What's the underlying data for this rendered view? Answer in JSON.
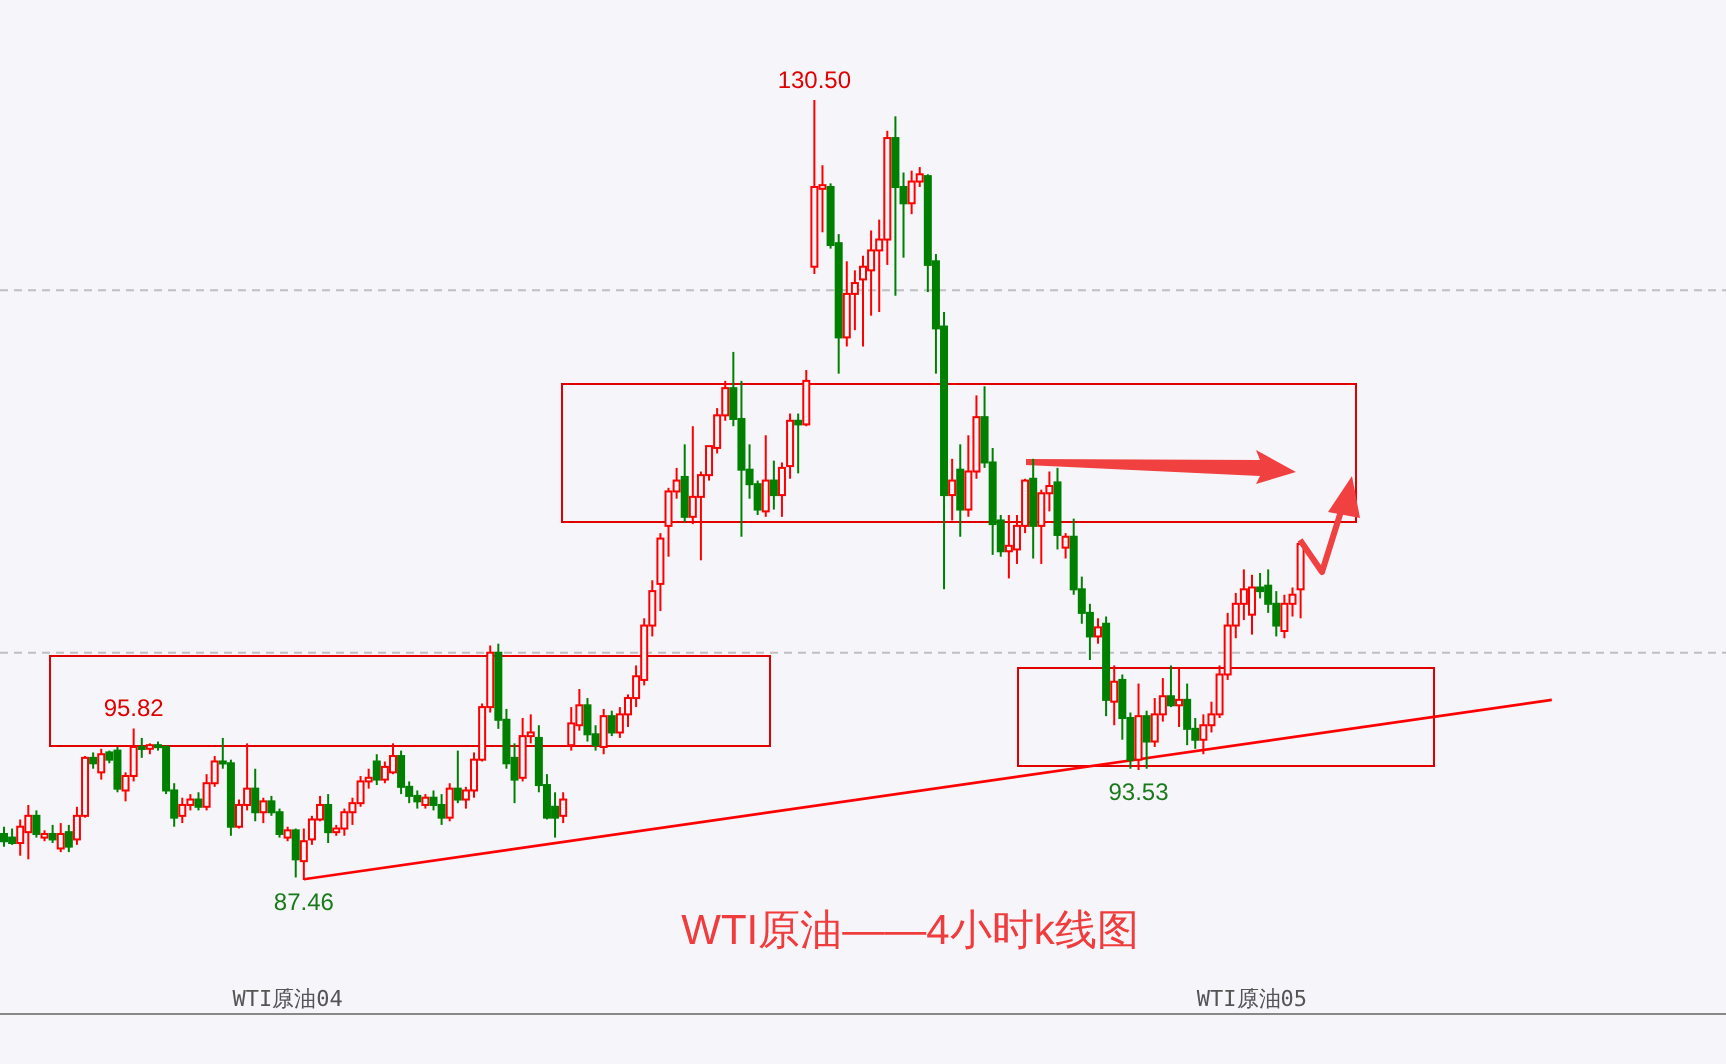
{
  "chart_data": {
    "type": "candlestick",
    "title": "WTI原油——4小时k线图",
    "categories": [
      null,
      null,
      null,
      null,
      null,
      null,
      null,
      null,
      null,
      null,
      null,
      null,
      null,
      null,
      null,
      null,
      null,
      null,
      null,
      null,
      null,
      null,
      null,
      null,
      null,
      null,
      null,
      null,
      null,
      null,
      null,
      null,
      null,
      null,
      null,
      "WTI原油04",
      null,
      null,
      null,
      null,
      null,
      null,
      null,
      null,
      null,
      null,
      null,
      null,
      null,
      null,
      null,
      null,
      null,
      null,
      null,
      null,
      null,
      null,
      null,
      null,
      null,
      null,
      null,
      null,
      null,
      null,
      null,
      null,
      null,
      null,
      null,
      null,
      null,
      null,
      null,
      null,
      null,
      null,
      null,
      null,
      null,
      null,
      null,
      null,
      null,
      null,
      null,
      null,
      null,
      null,
      null,
      null,
      null,
      null,
      null,
      null,
      null,
      null,
      null,
      null,
      null,
      null,
      null,
      null,
      null,
      null,
      null,
      null,
      null,
      null,
      null,
      null,
      null,
      null,
      null,
      null,
      null,
      null,
      null,
      null,
      null,
      null,
      null,
      null,
      null,
      null,
      null,
      null,
      null,
      null,
      null,
      null,
      null,
      null,
      null,
      null,
      null,
      null,
      null,
      null,
      null,
      null,
      null,
      null,
      null,
      null,
      null,
      null,
      null,
      null,
      null,
      null,
      null,
      null,
      "WTI原油05",
      null,
      null,
      null,
      null,
      null,
      null,
      null,
      null,
      null,
      null,
      null,
      null,
      null,
      null,
      null,
      null,
      null,
      null,
      null,
      null,
      null,
      null,
      null,
      null,
      null,
      null,
      null,
      null,
      null,
      null,
      null,
      null,
      null,
      null,
      null,
      null,
      null,
      null,
      null,
      null,
      null,
      null,
      null,
      null,
      null,
      null,
      null,
      null,
      null,
      null,
      null,
      null,
      null,
      null,
      null,
      null,
      null,
      null
    ],
    "ohlc": [
      [
        90.0,
        90.4,
        89.3,
        89.6
      ],
      [
        89.8,
        90.3,
        89.4,
        89.5
      ],
      [
        89.5,
        90.8,
        88.8,
        90.4
      ],
      [
        90.1,
        91.6,
        88.6,
        91.0
      ],
      [
        91.0,
        91.3,
        89.8,
        90.0
      ],
      [
        89.8,
        90.2,
        89.6,
        90.0
      ],
      [
        90.0,
        90.5,
        89.5,
        89.7
      ],
      [
        89.2,
        90.6,
        89.0,
        90.0
      ],
      [
        90.1,
        90.5,
        89.0,
        89.3
      ],
      [
        89.7,
        91.5,
        89.4,
        91.0
      ],
      [
        91.0,
        94.3,
        90.9,
        94.2
      ],
      [
        94.2,
        94.5,
        93.6,
        93.9
      ],
      [
        93.4,
        94.7,
        93.0,
        94.4
      ],
      [
        94.5,
        94.6,
        93.9,
        94.1
      ],
      [
        94.6,
        94.8,
        92.3,
        92.5
      ],
      [
        92.4,
        93.4,
        91.8,
        93.2
      ],
      [
        93.2,
        95.82,
        92.9,
        94.8
      ],
      [
        94.8,
        95.3,
        94.2,
        94.7
      ],
      [
        94.7,
        95.0,
        94.4,
        94.9
      ],
      [
        94.9,
        95.1,
        94.6,
        94.8
      ],
      [
        94.8,
        94.9,
        92.2,
        92.4
      ],
      [
        92.4,
        92.8,
        90.4,
        90.9
      ],
      [
        91.0,
        92.0,
        90.6,
        91.6
      ],
      [
        91.6,
        92.2,
        91.3,
        91.9
      ],
      [
        91.9,
        92.3,
        91.3,
        91.5
      ],
      [
        91.5,
        93.3,
        91.3,
        92.8
      ],
      [
        92.8,
        94.3,
        92.6,
        94.0
      ],
      [
        94.0,
        95.3,
        93.6,
        93.9
      ],
      [
        93.9,
        94.1,
        89.9,
        90.4
      ],
      [
        90.4,
        91.9,
        90.3,
        91.6
      ],
      [
        91.6,
        95.0,
        91.3,
        92.5
      ],
      [
        92.5,
        93.6,
        90.7,
        91.2
      ],
      [
        91.2,
        92.0,
        90.6,
        91.8
      ],
      [
        91.8,
        92.1,
        91.0,
        91.2
      ],
      [
        91.2,
        91.4,
        89.8,
        90.0
      ],
      [
        89.8,
        90.4,
        89.6,
        90.2
      ],
      [
        90.2,
        90.3,
        87.6,
        88.6
      ],
      [
        88.5,
        90.3,
        87.46,
        89.6
      ],
      [
        89.7,
        91.0,
        89.4,
        90.8
      ],
      [
        90.8,
        92.1,
        90.7,
        91.6
      ],
      [
        91.6,
        92.2,
        89.5,
        90.1
      ],
      [
        90.1,
        90.5,
        89.9,
        90.3
      ],
      [
        90.3,
        91.4,
        89.9,
        91.2
      ],
      [
        91.2,
        92.0,
        90.5,
        91.7
      ],
      [
        91.7,
        93.2,
        91.5,
        92.9
      ],
      [
        92.9,
        93.6,
        92.5,
        93.1
      ],
      [
        94.0,
        94.4,
        92.7,
        93.0
      ],
      [
        93.0,
        94.0,
        92.8,
        93.7
      ],
      [
        93.4,
        95.0,
        93.3,
        94.3
      ],
      [
        94.3,
        94.6,
        92.2,
        92.6
      ],
      [
        92.6,
        92.9,
        91.7,
        92.1
      ],
      [
        92.1,
        92.4,
        91.4,
        91.8
      ],
      [
        91.6,
        92.2,
        91.4,
        92.0
      ],
      [
        92.0,
        92.4,
        91.3,
        91.6
      ],
      [
        91.6,
        92.2,
        90.5,
        90.9
      ],
      [
        90.9,
        92.8,
        90.7,
        92.5
      ],
      [
        92.5,
        94.6,
        91.7,
        91.9
      ],
      [
        91.9,
        92.6,
        91.4,
        92.4
      ],
      [
        92.4,
        94.5,
        92.0,
        94.1
      ],
      [
        94.1,
        97.2,
        94.0,
        97.0
      ],
      [
        97.0,
        100.4,
        96.7,
        100.0
      ],
      [
        100.0,
        100.5,
        95.8,
        96.3
      ],
      [
        96.3,
        96.9,
        93.6,
        93.9
      ],
      [
        94.2,
        95.0,
        91.7,
        93.0
      ],
      [
        93.1,
        96.4,
        92.9,
        95.4
      ],
      [
        95.4,
        96.6,
        95.0,
        95.6
      ],
      [
        95.3,
        96.0,
        92.3,
        92.7
      ],
      [
        92.7,
        93.3,
        90.8,
        90.9
      ],
      [
        91.5,
        92.3,
        89.8,
        90.9
      ],
      [
        91.0,
        92.3,
        90.6,
        91.9
      ],
      [
        94.9,
        97.0,
        94.6,
        96.1
      ],
      [
        96.0,
        98.0,
        95.7,
        97.1
      ],
      [
        97.1,
        97.5,
        95.1,
        95.5
      ],
      [
        95.5,
        96.0,
        94.6,
        94.9
      ],
      [
        94.8,
        96.9,
        94.4,
        96.5
      ],
      [
        96.5,
        96.8,
        95.4,
        95.6
      ],
      [
        95.6,
        97.0,
        95.3,
        96.6
      ],
      [
        96.6,
        97.7,
        95.9,
        97.5
      ],
      [
        97.5,
        99.3,
        97.0,
        98.7
      ],
      [
        98.5,
        101.9,
        98.2,
        101.5
      ],
      [
        101.5,
        104.0,
        100.9,
        103.4
      ],
      [
        103.8,
        106.6,
        102.3,
        106.3
      ],
      [
        107.0,
        109.1,
        105.3,
        108.9
      ],
      [
        108.9,
        110.2,
        108.5,
        109.5
      ],
      [
        109.7,
        111.5,
        107.2,
        107.5
      ],
      [
        107.5,
        112.5,
        107.1,
        108.6
      ],
      [
        108.6,
        110.0,
        105.1,
        109.8
      ],
      [
        109.8,
        111.4,
        109.5,
        111.4
      ],
      [
        111.3,
        113.5,
        111.0,
        113.1
      ],
      [
        113.1,
        115.0,
        112.8,
        114.6
      ],
      [
        114.6,
        116.6,
        112.5,
        112.9
      ],
      [
        112.9,
        115.0,
        106.4,
        110.1
      ],
      [
        110.1,
        111.5,
        108.5,
        109.3
      ],
      [
        109.3,
        109.5,
        107.6,
        107.9
      ],
      [
        107.8,
        112.0,
        107.5,
        109.5
      ],
      [
        109.5,
        110.6,
        107.9,
        108.7
      ],
      [
        108.7,
        110.5,
        107.5,
        110.2
      ],
      [
        110.3,
        113.2,
        109.6,
        112.8
      ],
      [
        112.8,
        113.2,
        109.9,
        112.6
      ],
      [
        112.6,
        115.6,
        112.5,
        115.0
      ],
      [
        121.3,
        130.5,
        120.9,
        125.7
      ],
      [
        125.6,
        126.9,
        123.2,
        125.8
      ],
      [
        125.7,
        125.9,
        122.3,
        122.5
      ],
      [
        122.6,
        123.1,
        115.4,
        117.4
      ],
      [
        117.4,
        121.6,
        116.9,
        119.8
      ],
      [
        119.8,
        121.1,
        117.8,
        120.4
      ],
      [
        120.6,
        121.9,
        116.9,
        121.3
      ],
      [
        121.1,
        123.3,
        118.6,
        122.2
      ],
      [
        122.2,
        123.9,
        118.8,
        122.8
      ],
      [
        122.8,
        128.8,
        121.4,
        128.4
      ],
      [
        128.4,
        129.6,
        119.7,
        125.7
      ],
      [
        125.7,
        126.5,
        121.8,
        124.8
      ],
      [
        124.8,
        126.6,
        124.2,
        126.0
      ],
      [
        126.0,
        126.8,
        125.7,
        126.4
      ],
      [
        126.3,
        126.4,
        119.9,
        121.4
      ],
      [
        121.6,
        122.0,
        115.4,
        117.9
      ],
      [
        118.0,
        118.8,
        103.5,
        108.7
      ],
      [
        108.7,
        110.7,
        107.3,
        109.5
      ],
      [
        110.1,
        111.5,
        106.4,
        107.9
      ],
      [
        107.9,
        112.0,
        107.5,
        110.0
      ],
      [
        110.0,
        114.2,
        109.6,
        113.0
      ],
      [
        113.0,
        114.7,
        110.2,
        110.5
      ],
      [
        110.5,
        111.3,
        105.4,
        107.1
      ],
      [
        107.3,
        107.6,
        105.3,
        105.6
      ],
      [
        105.6,
        107.6,
        104.1,
        105.9
      ],
      [
        105.7,
        107.6,
        104.9,
        107.0
      ],
      [
        107.0,
        109.6,
        106.6,
        109.5
      ],
      [
        109.6,
        110.7,
        105.2,
        107.0
      ],
      [
        107.0,
        109.0,
        104.9,
        108.8
      ],
      [
        108.8,
        110.0,
        107.8,
        109.2
      ],
      [
        109.4,
        110.2,
        105.7,
        106.5
      ],
      [
        105.8,
        106.6,
        105.2,
        106.4
      ],
      [
        106.4,
        107.4,
        103.2,
        103.5
      ],
      [
        103.5,
        104.2,
        101.6,
        102.2
      ],
      [
        102.2,
        102.7,
        99.6,
        100.9
      ],
      [
        100.9,
        101.9,
        100.5,
        101.4
      ],
      [
        101.6,
        102.0,
        96.5,
        97.4
      ],
      [
        97.3,
        99.3,
        96.0,
        98.4
      ],
      [
        98.5,
        98.8,
        95.2,
        96.4
      ],
      [
        96.4,
        96.7,
        93.6,
        94.1
      ],
      [
        94.1,
        98.3,
        93.53,
        96.5
      ],
      [
        96.5,
        96.8,
        93.6,
        95.1
      ],
      [
        95.1,
        97.5,
        94.8,
        96.6
      ],
      [
        96.6,
        98.6,
        96.2,
        97.6
      ],
      [
        97.6,
        99.3,
        97.0,
        97.1
      ],
      [
        97.1,
        99.2,
        95.9,
        97.4
      ],
      [
        97.4,
        98.3,
        94.9,
        95.8
      ],
      [
        95.8,
        96.4,
        94.7,
        95.2
      ],
      [
        95.2,
        96.6,
        94.4,
        96.0
      ],
      [
        96.0,
        97.3,
        95.6,
        96.6
      ],
      [
        96.6,
        99.3,
        96.4,
        98.8
      ],
      [
        98.8,
        102.2,
        98.5,
        101.5
      ],
      [
        101.5,
        103.3,
        100.8,
        102.7
      ],
      [
        102.7,
        104.6,
        101.8,
        103.5
      ],
      [
        102.1,
        104.3,
        101.0,
        103.6
      ],
      [
        103.6,
        104.4,
        103.0,
        103.4
      ],
      [
        103.7,
        104.6,
        102.2,
        102.7
      ],
      [
        102.7,
        103.4,
        100.9,
        101.5
      ],
      [
        101.2,
        103.2,
        100.8,
        102.7
      ],
      [
        102.7,
        103.6,
        102.0,
        103.2
      ],
      [
        103.5,
        106.2,
        101.9,
        106.0
      ],
      null,
      null,
      null,
      null,
      null,
      null,
      null,
      null,
      null,
      null,
      null,
      null,
      null,
      null,
      null,
      null,
      null,
      null,
      null,
      null,
      null,
      null,
      null,
      null,
      null,
      null,
      null,
      null,
      null,
      null,
      null,
      null,
      null,
      null,
      null,
      null,
      null,
      null,
      null,
      null,
      null,
      null,
      null,
      null,
      null,
      null,
      null,
      null,
      null,
      null,
      null,
      null
    ],
    "colors": [
      "#008000",
      "#008000",
      "#ff0000",
      "#ff0000",
      "#008000",
      "#ff0000",
      "#008000",
      "#ff0000",
      "#008000",
      "#ff0000",
      "#ff0000",
      "#008000",
      "#ff0000",
      "#008000",
      "#008000",
      "#ff0000",
      "#ff0000",
      "#008000",
      "#ff0000",
      "#008000",
      "#008000",
      "#008000",
      "#ff0000",
      "#ff0000",
      "#008000",
      "#ff0000",
      "#ff0000",
      "#008000",
      "#008000",
      "#ff0000",
      "#ff0000",
      "#008000",
      "#ff0000",
      "#008000",
      "#008000",
      "#ff0000",
      "#008000",
      "#ff0000",
      "#ff0000",
      "#ff0000",
      "#008000",
      "#ff0000",
      "#ff0000",
      "#ff0000",
      "#ff0000",
      "#ff0000",
      "#008000",
      "#ff0000",
      "#ff0000",
      "#008000",
      "#008000",
      "#008000",
      "#ff0000",
      "#008000",
      "#008000",
      "#ff0000",
      "#008000",
      "#ff0000",
      "#ff0000",
      "#ff0000",
      "#ff0000",
      "#008000",
      "#008000",
      "#008000",
      "#ff0000",
      "#ff0000",
      "#008000",
      "#008000",
      "#008000",
      "#ff0000",
      "#ff0000",
      "#ff0000",
      "#008000",
      "#008000",
      "#ff0000",
      "#008000",
      "#ff0000",
      "#ff0000",
      "#ff0000",
      "#ff0000",
      "#ff0000",
      "#ff0000",
      "#ff0000",
      "#ff0000",
      "#008000",
      "#ff0000",
      "#ff0000",
      "#ff0000",
      "#ff0000",
      "#ff0000",
      "#008000",
      "#008000",
      "#008000",
      "#008000",
      "#ff0000",
      "#008000",
      "#ff0000",
      "#ff0000",
      "#008000",
      "#ff0000",
      "#ff0000",
      "#ff0000",
      "#008000",
      "#008000",
      "#ff0000",
      "#ff0000",
      "#ff0000",
      "#ff0000",
      "#ff0000",
      "#ff0000",
      "#008000",
      "#008000",
      "#ff0000",
      "#ff0000",
      "#008000",
      "#008000",
      "#008000",
      "#ff0000",
      "#008000",
      "#ff0000",
      "#ff0000",
      "#008000",
      "#008000",
      "#008000",
      "#ff0000",
      "#ff0000",
      "#ff0000",
      "#008000",
      "#ff0000",
      "#ff0000",
      "#008000",
      "#ff0000",
      "#008000",
      "#008000",
      "#008000",
      "#ff0000",
      "#008000",
      "#ff0000",
      "#008000",
      "#008000",
      "#ff0000",
      "#008000",
      "#ff0000",
      "#ff0000",
      "#008000",
      "#ff0000",
      "#008000",
      "#008000",
      "#ff0000",
      "#ff0000",
      "#ff0000",
      "#ff0000",
      "#ff0000",
      "#ff0000",
      "#ff0000",
      "#008000",
      "#008000",
      "#008000",
      "#ff0000",
      "#ff0000",
      "#ff0000",
      null,
      null,
      null,
      null,
      null,
      null,
      null,
      null,
      null,
      null,
      null,
      null,
      null,
      null,
      null,
      null,
      null,
      null,
      null,
      null,
      null,
      null,
      null,
      null,
      null,
      null,
      null,
      null,
      null,
      null,
      null,
      null,
      null,
      null,
      null,
      null,
      null,
      null,
      null,
      null,
      null,
      null,
      null,
      null,
      null,
      null,
      null,
      null,
      null,
      null,
      null,
      null
    ],
    "series": [
      {
        "type": "line",
        "color": "#ff0000",
        "values": [
          null,
          null,
          null,
          null,
          null,
          null,
          null,
          null,
          null,
          null,
          null,
          null,
          null,
          null,
          null,
          null,
          null,
          null,
          null,
          null,
          null,
          null,
          null,
          null,
          null,
          null,
          null,
          null,
          null,
          null,
          null,
          null,
          null,
          null,
          null,
          null,
          null,
          87.5,
          null,
          null,
          null,
          null,
          null,
          null,
          null,
          null,
          null,
          null,
          null,
          null,
          null,
          null,
          null,
          null,
          null,
          null,
          null,
          null,
          null,
          null,
          null,
          null,
          null,
          null,
          null,
          null,
          null,
          null,
          null,
          null,
          null,
          null,
          null,
          null,
          null,
          null,
          null,
          null,
          null,
          null,
          null,
          null,
          null,
          null,
          null,
          null,
          null,
          null,
          null,
          null,
          null,
          null,
          null,
          null,
          null,
          null,
          null,
          null,
          null,
          null,
          null,
          null,
          null,
          null,
          null,
          null,
          null,
          null,
          null,
          null,
          null,
          null,
          null,
          null,
          null,
          null,
          null,
          null,
          null,
          null,
          null,
          null,
          null,
          null,
          null,
          null,
          null,
          null,
          null,
          null,
          null,
          null,
          null,
          null,
          null,
          null,
          null,
          null,
          null,
          null,
          null,
          null,
          null,
          null,
          null,
          null,
          null,
          null,
          null,
          null,
          null,
          null,
          null,
          null,
          null,
          null,
          null,
          null,
          null,
          null,
          null,
          null,
          null,
          null,
          null,
          null,
          null,
          null,
          null,
          null,
          null,
          null,
          null,
          null,
          null,
          null,
          null,
          null,
          null,
          null,
          null,
          null,
          null,
          null,
          null,
          null,
          null,
          null,
          null,
          null,
          null,
          97.4,
          null,
          null,
          null,
          null,
          null,
          null,
          null,
          null,
          null,
          null,
          null,
          null,
          null,
          null,
          null,
          null,
          null,
          null,
          null,
          null,
          null
        ]
      }
    ],
    "yticks": [
      {
        "value": 100,
        "label": null
      },
      {
        "value": 120,
        "label": null
      }
    ],
    "grid": "y",
    "tick_labels": "x",
    "annotations": [
      {
        "text": "130.50",
        "y": 130.5
      },
      {
        "text": "95.82",
        "y": 95.82
      },
      {
        "text": "87.46",
        "y": 87.46
      },
      {
        "text": "93.53",
        "y": 93.53
      }
    ]
  }
}
